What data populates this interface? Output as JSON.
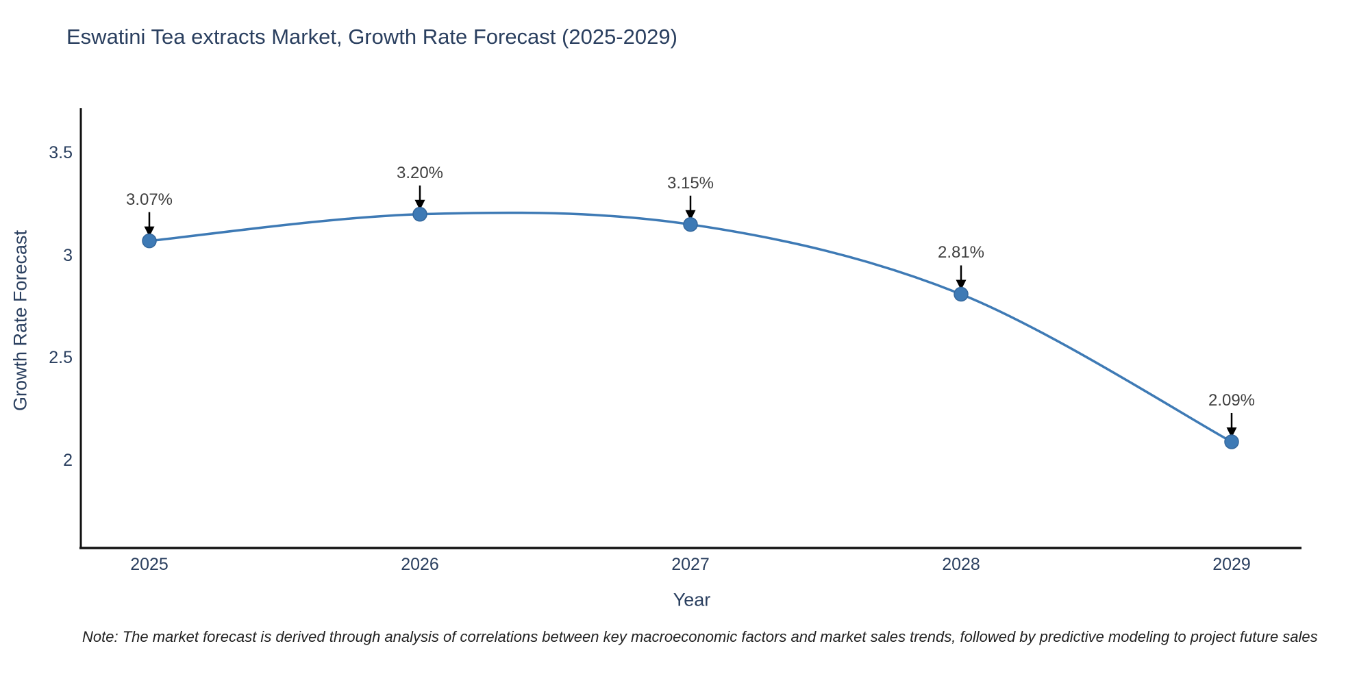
{
  "figure": {
    "note": "Note: The market forecast is derived through analysis of correlations between key macroeconomic factors and market sales trends, followed by predictive modeling to project future sales"
  },
  "chart_data": {
    "type": "line",
    "title": "Eswatini Tea extracts Market, Growth Rate Forecast (2025-2029)",
    "xlabel": "Year",
    "ylabel": "Growth Rate Forecast",
    "categories": [
      "2025",
      "2026",
      "2027",
      "2028",
      "2029"
    ],
    "values": [
      3.07,
      3.2,
      3.15,
      2.81,
      2.09
    ],
    "point_labels": [
      "3.07%",
      "3.20%",
      "3.15%",
      "2.81%",
      "2.09%"
    ],
    "yticks": [
      "2",
      "2.5",
      "3",
      "3.5"
    ],
    "ytick_values": [
      2,
      2.5,
      3,
      3.5
    ],
    "ylim": [
      1.57,
      3.71
    ],
    "line_shape": "spline",
    "grid": false,
    "legend_position": "none",
    "colors": {
      "line": "#3e7ab5",
      "marker": "#3e7ab5",
      "marker_edge": "#34679c",
      "axis": "#111111",
      "title_text": "#2a3f5f",
      "tick_text": "#2a3f5f",
      "annotation_text": "#404040",
      "arrow": "#000000",
      "background": "#ffffff"
    }
  }
}
